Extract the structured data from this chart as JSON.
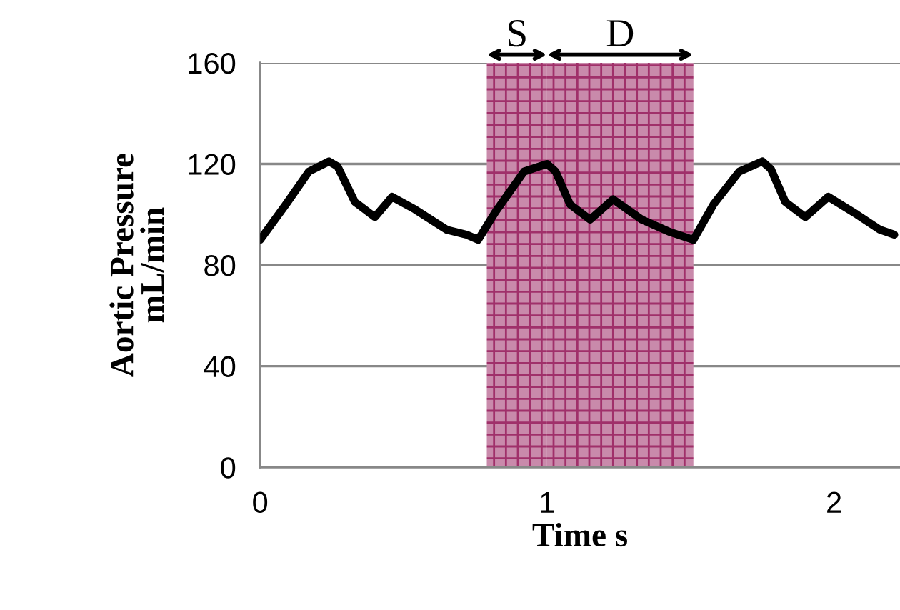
{
  "chart_data": {
    "type": "line",
    "xlabel": "Time s",
    "ylabel": "Aortic Pressure\nmL/min",
    "x": [
      0.0,
      0.09,
      0.17,
      0.24,
      0.27,
      0.33,
      0.4,
      0.46,
      0.54,
      0.65,
      0.72,
      0.76,
      0.82,
      0.92,
      1.0,
      1.03,
      1.08,
      1.15,
      1.23,
      1.33,
      1.43,
      1.51,
      1.58,
      1.67,
      1.75,
      1.78,
      1.83,
      1.9,
      1.98,
      2.08,
      2.16,
      2.21
    ],
    "series": [
      {
        "color": "#000000",
        "values": [
          90,
          104,
          117,
          121,
          119,
          105,
          99,
          107,
          102,
          94,
          92,
          90,
          101,
          117,
          120,
          117,
          104,
          98,
          106,
          98,
          93,
          90,
          104,
          117,
          121,
          118,
          105,
          99,
          107,
          100,
          94,
          92
        ]
      }
    ],
    "xlim": [
      0,
      2.23
    ],
    "xticks": [
      0,
      1,
      2
    ],
    "ylim": [
      0,
      160
    ],
    "yticks": [
      0,
      40,
      80,
      120,
      160
    ],
    "grid": "y",
    "legend": false,
    "marker": "none",
    "line_style": "solid",
    "bands": [
      {
        "axis": "x",
        "from": 0.79,
        "to": 1.0,
        "label": "S",
        "color": "#c98aab"
      },
      {
        "axis": "x",
        "from": 1.0,
        "to": 1.51,
        "label": "D",
        "color": "#c98aab"
      }
    ]
  }
}
